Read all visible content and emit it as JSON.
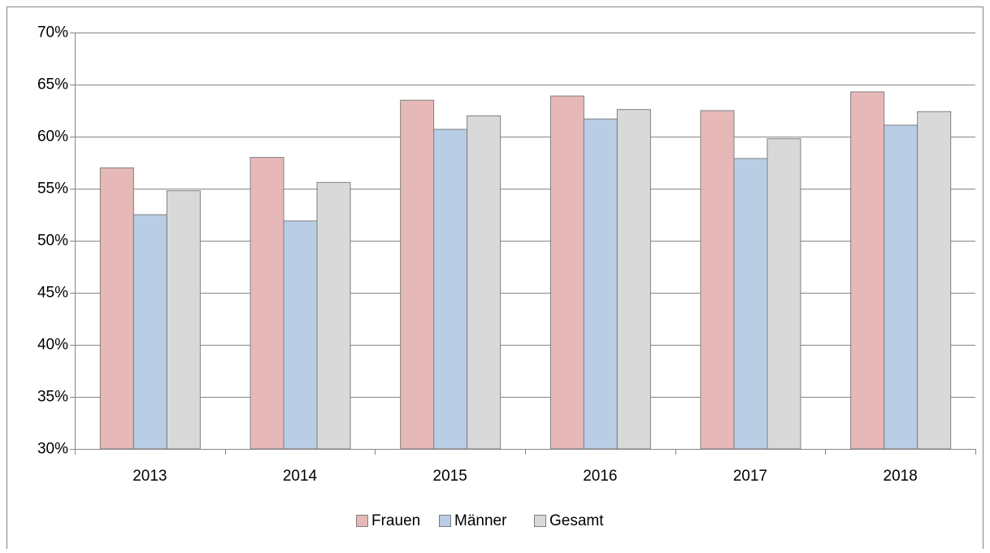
{
  "chart_data": {
    "type": "bar",
    "categories": [
      "2013",
      "2014",
      "2015",
      "2016",
      "2017",
      "2018"
    ],
    "series": [
      {
        "name": "Frauen",
        "color": "#e6b9b8",
        "values": [
          57.0,
          58.0,
          63.5,
          63.9,
          62.5,
          64.3
        ]
      },
      {
        "name": "Männer",
        "color": "#b9cde5",
        "values": [
          52.5,
          51.9,
          60.7,
          61.7,
          57.9,
          61.1
        ]
      },
      {
        "name": "Gesamt",
        "color": "#d9d9d9",
        "values": [
          54.8,
          55.6,
          62.0,
          62.6,
          59.8,
          62.4
        ]
      }
    ],
    "ylim": [
      30,
      70
    ],
    "yticks": [
      {
        "value": 30,
        "label": "30%"
      },
      {
        "value": 35,
        "label": "35%"
      },
      {
        "value": 40,
        "label": "40%"
      },
      {
        "value": 45,
        "label": "45%"
      },
      {
        "value": 50,
        "label": "50%"
      },
      {
        "value": 55,
        "label": "55%"
      },
      {
        "value": 60,
        "label": "60%"
      },
      {
        "value": 65,
        "label": "65%"
      },
      {
        "value": 70,
        "label": "70%"
      }
    ],
    "grid": true,
    "legend": "bottom"
  }
}
